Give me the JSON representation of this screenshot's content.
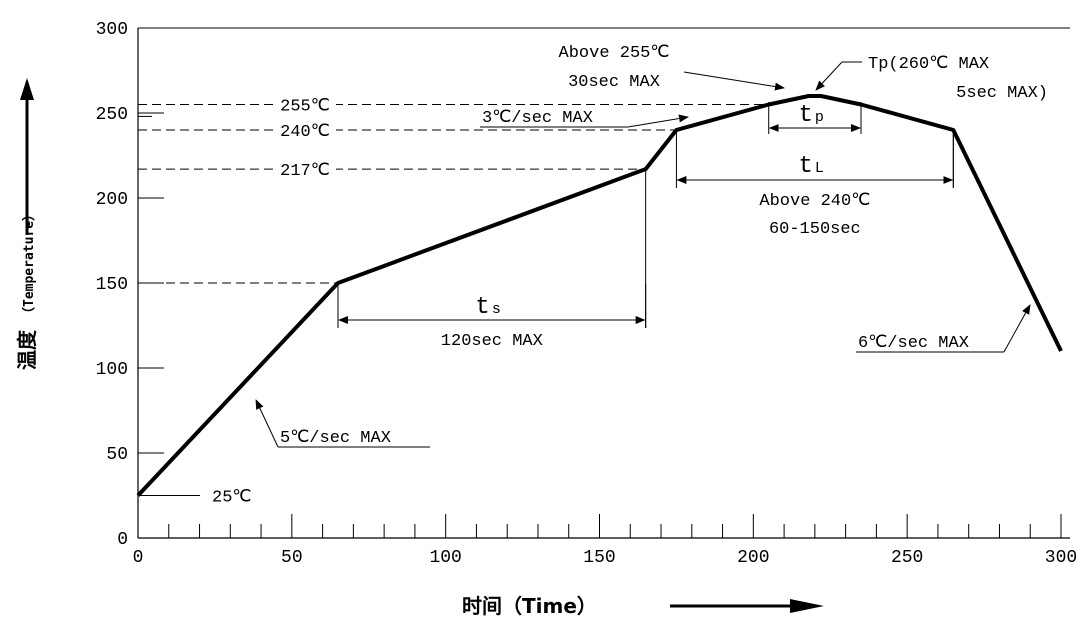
{
  "chart_data": {
    "type": "line",
    "xlabel": "时间（Time）",
    "ylabel_cn": "温度",
    "ylabel_en": "（Temperature）",
    "xlim": [
      0,
      300
    ],
    "ylim": [
      0,
      300
    ],
    "x_ticks": [
      0,
      50,
      100,
      150,
      200,
      250,
      300
    ],
    "y_ticks": [
      0,
      50,
      100,
      150,
      200,
      250,
      300
    ],
    "series": [
      {
        "x": [
          0,
          65,
          165,
          175,
          205,
          218,
          222,
          235,
          265,
          300
        ],
        "y": [
          25,
          150,
          217,
          240,
          255,
          260,
          260,
          255,
          240,
          110
        ]
      }
    ],
    "reference_levels": [
      {
        "label": "255℃",
        "y": 255,
        "x_end": 205
      },
      {
        "label": "240℃",
        "y": 240,
        "x_end": 175
      },
      {
        "label": "217℃",
        "y": 217,
        "x_end": 165
      },
      {
        "label": "",
        "y": 150,
        "x_end": 65
      }
    ],
    "spans": {
      "ts": {
        "symbol": "t",
        "subscript": "s",
        "note": "120sec MAX",
        "x_start": 65,
        "x_end": 165
      },
      "tL": {
        "symbol": "t",
        "subscript": "L",
        "note_line1": "Above 240℃",
        "note_line2": "60-150sec",
        "x_start": 175,
        "x_end": 265
      },
      "tp": {
        "symbol": "t",
        "subscript": "p",
        "x_start": 205,
        "x_end": 235
      }
    },
    "annotations": {
      "start_temp": "25℃",
      "ramp_up": "5℃/sec MAX",
      "ramp_mid": "3℃/sec MAX",
      "above255_line1": "Above 255℃",
      "above255_line2": "30sec MAX",
      "peak_line1": "Tp(260℃ MAX",
      "peak_line2": "5sec MAX)",
      "ramp_down": "6℃/sec MAX"
    }
  }
}
